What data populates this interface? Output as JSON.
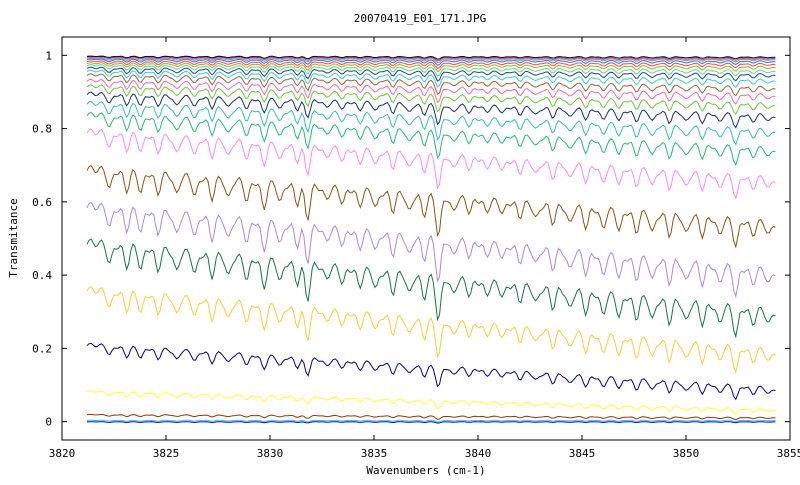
{
  "chart_data": {
    "type": "line",
    "title": "20070419_E01_171.JPG",
    "xlabel": "Wavenumbers (cm-1)",
    "ylabel": "Transmitance",
    "xlim": [
      3820,
      3855
    ],
    "ylim": [
      -0.05,
      1.05
    ],
    "x_range": [
      3821.2,
      3854.3
    ],
    "x_ticks": [
      "3820",
      "3825",
      "3830",
      "3835",
      "3840",
      "3845",
      "3850",
      "3855"
    ],
    "y_ticks": [
      "0",
      "0.2",
      "0.4",
      "0.6",
      "0.8",
      "1"
    ],
    "x_tick_values": [
      3820,
      3825,
      3830,
      3835,
      3840,
      3845,
      3850,
      3855
    ],
    "y_tick_values": [
      0,
      0.2,
      0.4,
      0.6,
      0.8,
      1.0
    ],
    "grid": false,
    "legend": "none",
    "series": [
      {
        "color": "#0000ff",
        "start": 0.0,
        "end": 0.0,
        "depth": 0.004
      },
      {
        "color": "#33cccc",
        "start": 0.004,
        "end": 0.004,
        "depth": 0.005
      },
      {
        "color": "#993300",
        "start": 0.02,
        "end": 0.012,
        "depth": 0.01
      },
      {
        "color": "#ffff33",
        "start": 0.085,
        "end": 0.035,
        "depth": 0.025
      },
      {
        "color": "#000099",
        "start": 0.215,
        "end": 0.095,
        "depth": 0.06
      },
      {
        "color": "#ffcc33",
        "start": 0.37,
        "end": 0.2,
        "depth": 0.11
      },
      {
        "color": "#117744",
        "start": 0.5,
        "end": 0.31,
        "depth": 0.13
      },
      {
        "color": "#aa88dd",
        "start": 0.6,
        "end": 0.42,
        "depth": 0.13
      },
      {
        "color": "#885511",
        "start": 0.7,
        "end": 0.55,
        "depth": 0.12
      },
      {
        "color": "#ff88ff",
        "start": 0.8,
        "end": 0.67,
        "depth": 0.1
      },
      {
        "color": "#22bb77",
        "start": 0.845,
        "end": 0.75,
        "depth": 0.08
      },
      {
        "color": "#33bbcc",
        "start": 0.875,
        "end": 0.8,
        "depth": 0.07
      },
      {
        "color": "#113366",
        "start": 0.9,
        "end": 0.84,
        "depth": 0.06
      },
      {
        "color": "#66cc33",
        "start": 0.92,
        "end": 0.87,
        "depth": 0.05
      },
      {
        "color": "#ff66aa",
        "start": 0.935,
        "end": 0.895,
        "depth": 0.045
      },
      {
        "color": "#996633",
        "start": 0.95,
        "end": 0.915,
        "depth": 0.04
      },
      {
        "color": "#33ccdd",
        "start": 0.96,
        "end": 0.935,
        "depth": 0.035
      },
      {
        "color": "#224477",
        "start": 0.968,
        "end": 0.95,
        "depth": 0.03
      },
      {
        "color": "#55dd88",
        "start": 0.975,
        "end": 0.96,
        "depth": 0.025
      },
      {
        "color": "#aaaa22",
        "start": 0.98,
        "end": 0.97,
        "depth": 0.02
      },
      {
        "color": "#ff4444",
        "start": 0.985,
        "end": 0.978,
        "depth": 0.018
      },
      {
        "color": "#3366ff",
        "start": 0.99,
        "end": 0.985,
        "depth": 0.015
      },
      {
        "color": "#66aa66",
        "start": 0.993,
        "end": 0.99,
        "depth": 0.012
      },
      {
        "color": "#cc33cc",
        "start": 0.996,
        "end": 0.993,
        "depth": 0.01
      },
      {
        "color": "#000000",
        "start": 0.998,
        "end": 0.996,
        "depth": 0.008
      }
    ]
  }
}
